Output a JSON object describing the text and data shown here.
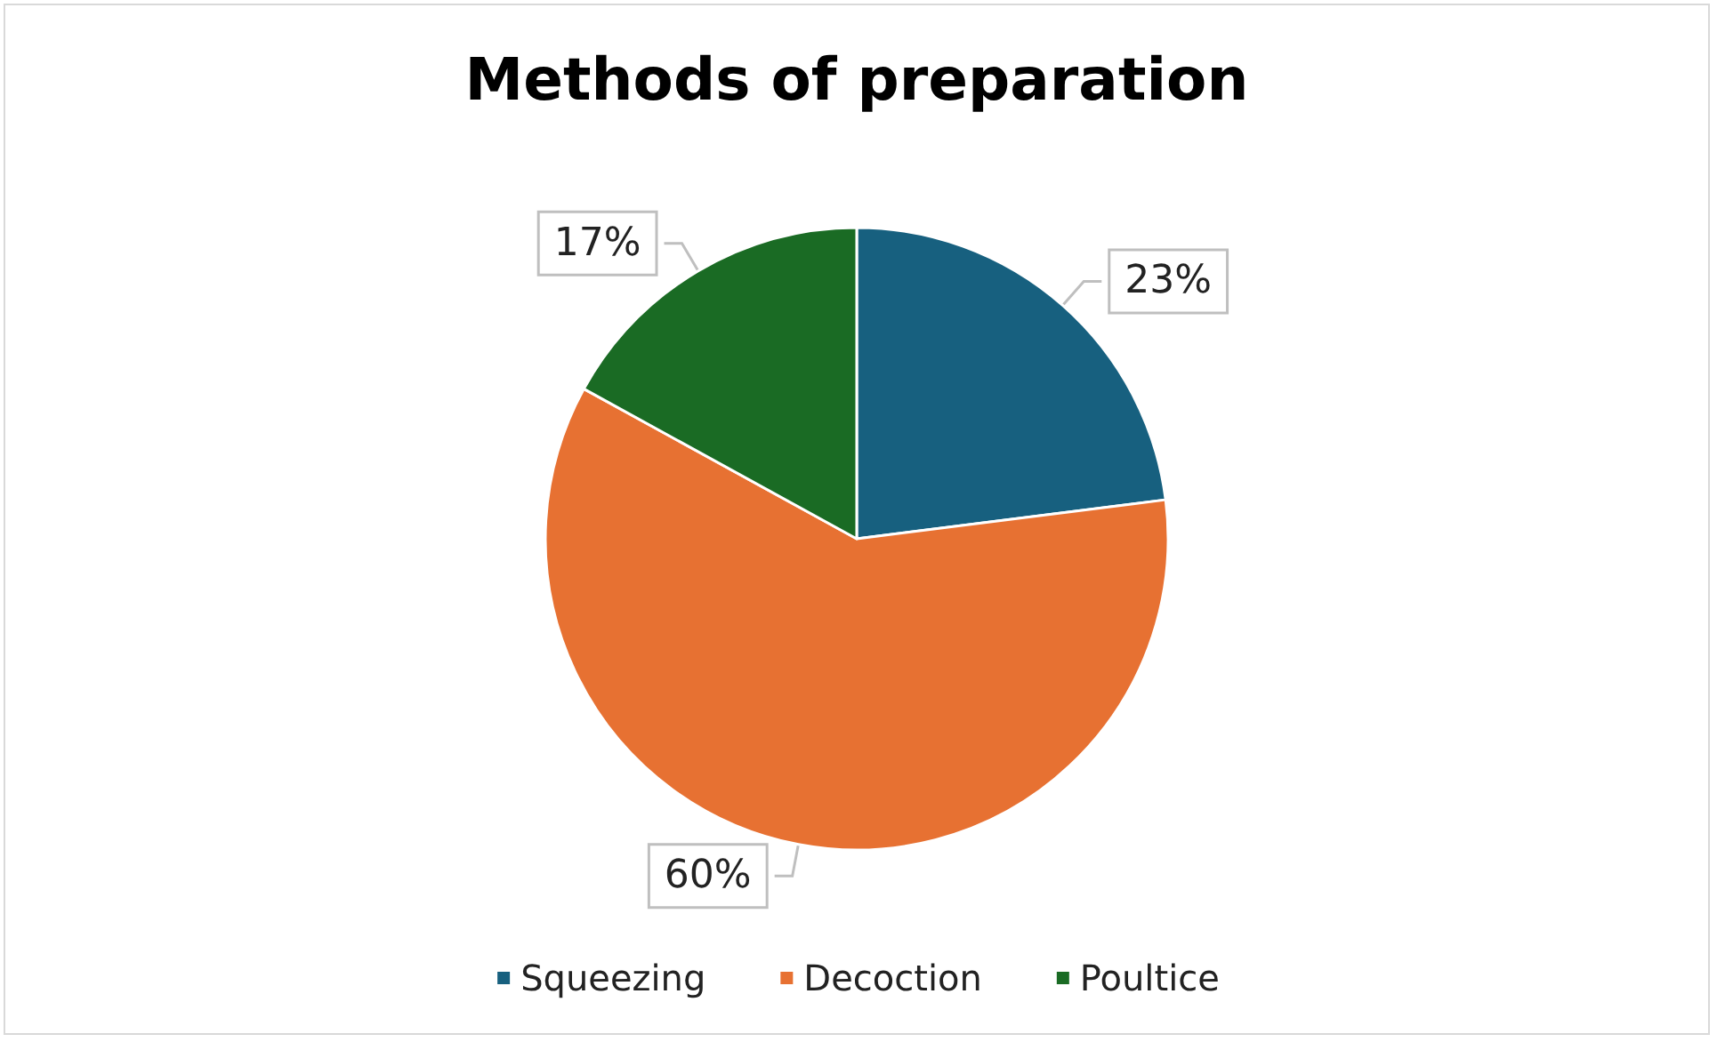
{
  "chart_data": {
    "type": "pie",
    "title": "Methods of preparation",
    "categories": [
      "Squeezing",
      "Decoction",
      "Poultice"
    ],
    "values": [
      23,
      60,
      17
    ],
    "colors": [
      "#17607f",
      "#e77132",
      "#1a6b24"
    ],
    "value_labels": [
      "23%",
      "60%",
      "17%"
    ],
    "legend": "bottom"
  }
}
